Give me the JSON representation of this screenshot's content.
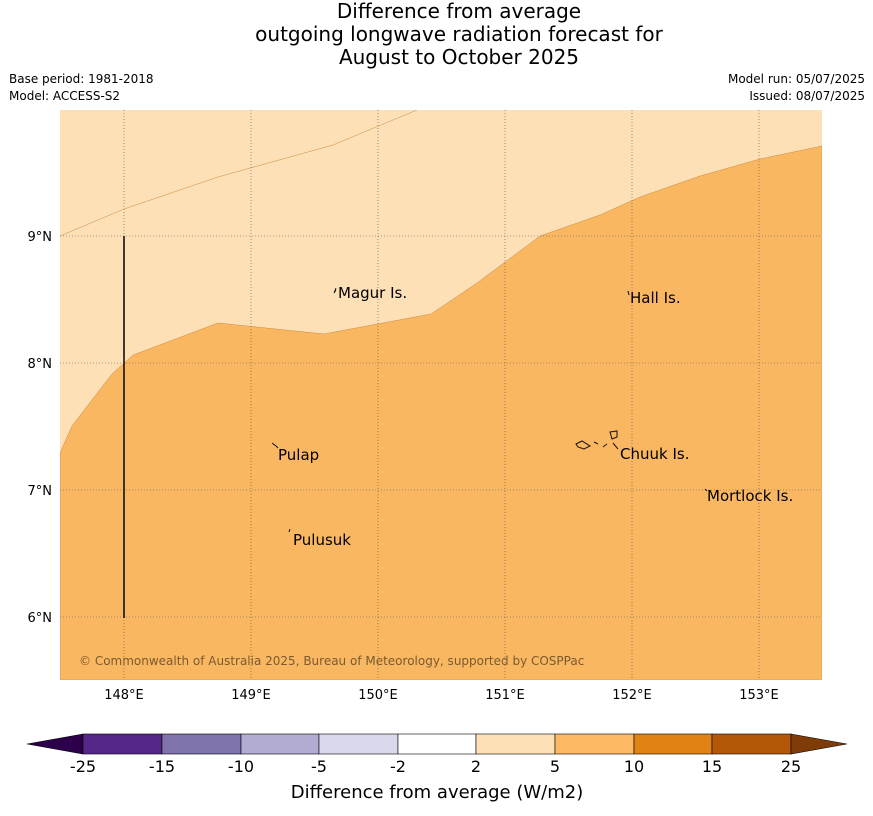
{
  "title": {
    "line1": "Difference from average",
    "line2": "outgoing longwave radiation forecast for",
    "line3": "August to October 2025"
  },
  "meta": {
    "base_period": "Base period: 1981-2018",
    "model": "Model: ACCESS-S2",
    "model_run": "Model run: 05/07/2025",
    "issued": "Issued: 08/07/2025"
  },
  "map": {
    "lon_ticks": [
      "148°E",
      "149°E",
      "150°E",
      "151°E",
      "152°E",
      "153°E"
    ],
    "lat_ticks": [
      "9°N",
      "8°N",
      "7°N",
      "6°N"
    ],
    "places": {
      "magur": "Magur Is.",
      "hall": "Hall Is.",
      "pulap": "Pulap",
      "chuuk": "Chuuk Is.",
      "mortlock": "Mortlock Is.",
      "pulusuk": "Pulusuk"
    },
    "copyright": "© Commonwealth of Australia 2025, Bureau of Meteorology, supported by COSPPac",
    "colors": {
      "band_2_5": "#fde0b6",
      "band_5_10": "#fab762"
    }
  },
  "colorbar": {
    "ticks": [
      "-25",
      "-15",
      "-10",
      "-5",
      "-2",
      "2",
      "5",
      "10",
      "15",
      "25"
    ],
    "colors": [
      "#2d004b",
      "#542788",
      "#8073ac",
      "#b2abd2",
      "#d8daeb",
      "#ffffff",
      "#fee0b6",
      "#fdb863",
      "#e08214",
      "#b35806",
      "#7f3b08"
    ],
    "label": "Difference from average (W/m2)"
  }
}
